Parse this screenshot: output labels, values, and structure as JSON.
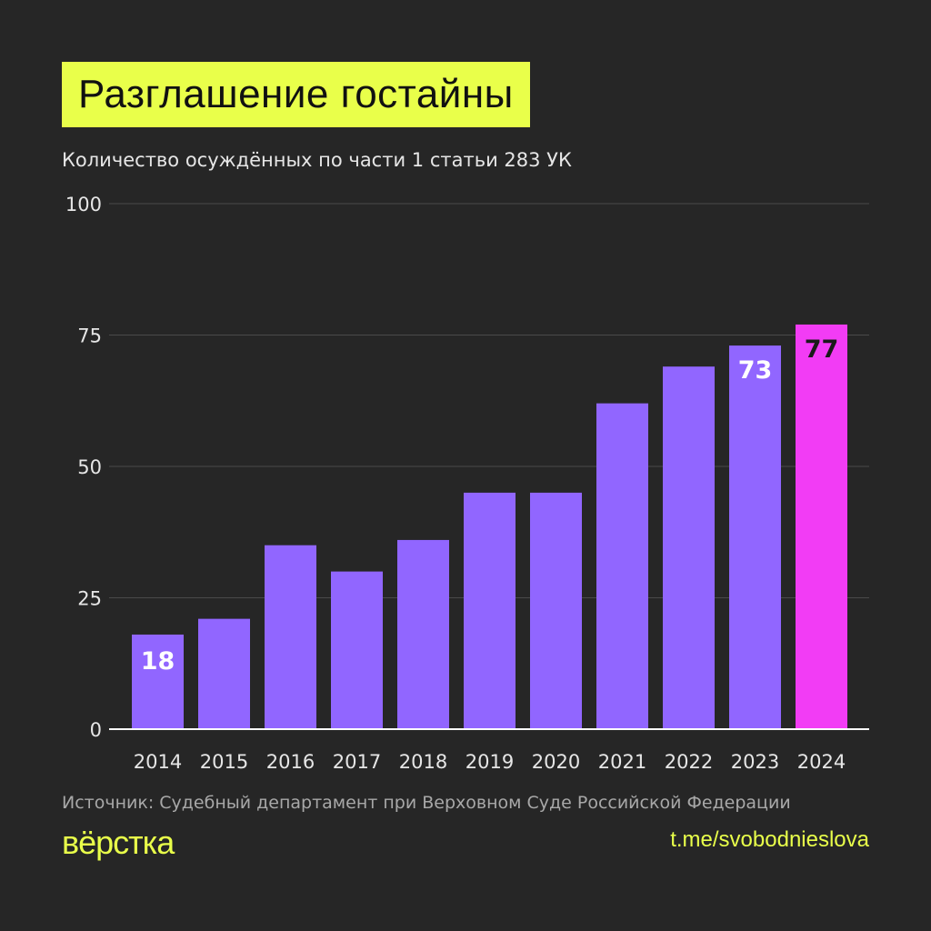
{
  "header": {
    "title": "Разглашение гостайны",
    "subtitle": "Количество осуждённых по части 1 статьи 283 УК"
  },
  "footer": {
    "source": "Источник: Судебный департамент при Верховном Суде Российской Федерации",
    "logo": "вёрстка",
    "link": "t.me/svobodnieslova"
  },
  "colors": {
    "background": "#262626",
    "accent": "#e9ff4a",
    "bar": "#9166ff",
    "highlight": "#f23cf5"
  },
  "chart_data": {
    "type": "bar",
    "categories": [
      "2014",
      "2015",
      "2016",
      "2017",
      "2018",
      "2019",
      "2020",
      "2021",
      "2022",
      "2023",
      "2024"
    ],
    "values": [
      18,
      21,
      35,
      30,
      36,
      45,
      45,
      62,
      69,
      73,
      77
    ],
    "data_labels": {
      "2014": "18",
      "2023": "73",
      "2024": "77"
    },
    "highlight_category": "2024",
    "ylim": [
      0,
      100
    ],
    "yticks": [
      0,
      25,
      50,
      75,
      100
    ],
    "grid": true,
    "xlabel": "",
    "ylabel": ""
  }
}
